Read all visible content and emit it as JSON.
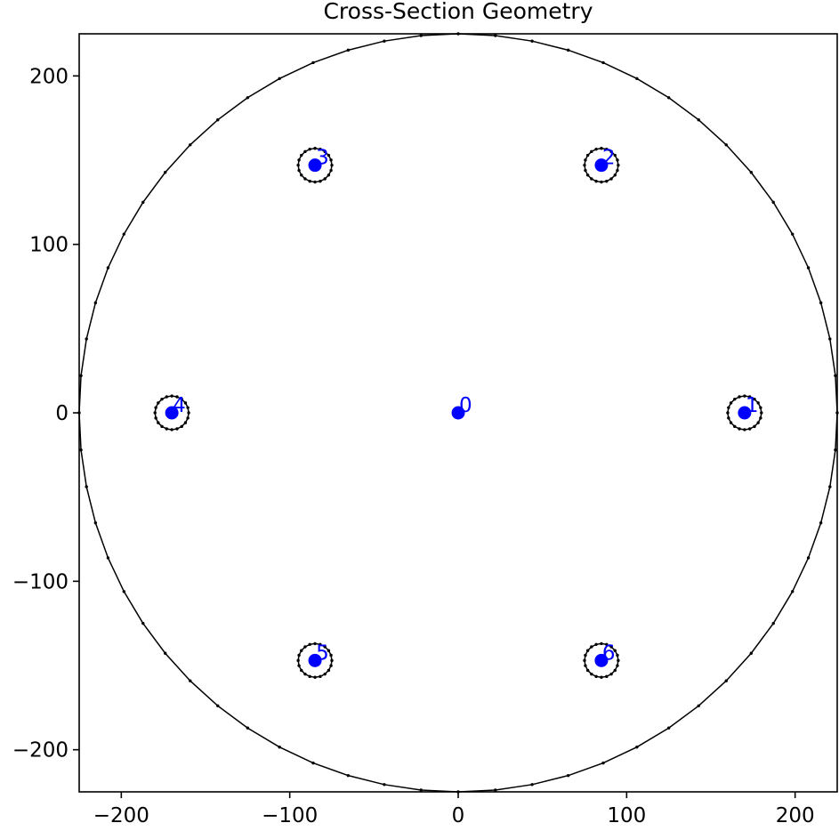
{
  "chart_data": {
    "type": "scatter",
    "title": "Cross-Section Geometry",
    "xlabel": "",
    "ylabel": "",
    "xlim": [
      -225,
      225
    ],
    "ylim": [
      -225,
      225
    ],
    "grid": false,
    "x_ticks": [
      -200,
      -100,
      0,
      100,
      200
    ],
    "y_ticks": [
      -200,
      -100,
      0,
      100,
      200
    ],
    "x_tick_labels": [
      "−200",
      "−100",
      "0",
      "100",
      "200"
    ],
    "y_tick_labels": [
      "−200",
      "−100",
      "0",
      "100",
      "200"
    ],
    "outer_boundary": {
      "shape": "circle",
      "center": [
        0,
        0
      ],
      "radius": 225,
      "vertices": 64,
      "color": "#000000"
    },
    "holes": [
      {
        "center": [
          170,
          0
        ],
        "radius": 10,
        "vertices": 20
      },
      {
        "center": [
          85,
          147
        ],
        "radius": 10,
        "vertices": 20
      },
      {
        "center": [
          -85,
          147
        ],
        "radius": 10,
        "vertices": 20
      },
      {
        "center": [
          -170,
          0
        ],
        "radius": 10,
        "vertices": 20
      },
      {
        "center": [
          -85,
          -147
        ],
        "radius": 10,
        "vertices": 20
      },
      {
        "center": [
          85,
          -147
        ],
        "radius": 10,
        "vertices": 20
      }
    ],
    "nodes": [
      {
        "id": "0",
        "x": 0,
        "y": 0
      },
      {
        "id": "1",
        "x": 170,
        "y": 0
      },
      {
        "id": "2",
        "x": 85,
        "y": 147
      },
      {
        "id": "3",
        "x": -85,
        "y": 147
      },
      {
        "id": "4",
        "x": -170,
        "y": 0
      },
      {
        "id": "5",
        "x": -85,
        "y": -147
      },
      {
        "id": "6",
        "x": 85,
        "y": -147
      }
    ],
    "node_color": "#0000ff",
    "boundary_color": "#000000"
  }
}
